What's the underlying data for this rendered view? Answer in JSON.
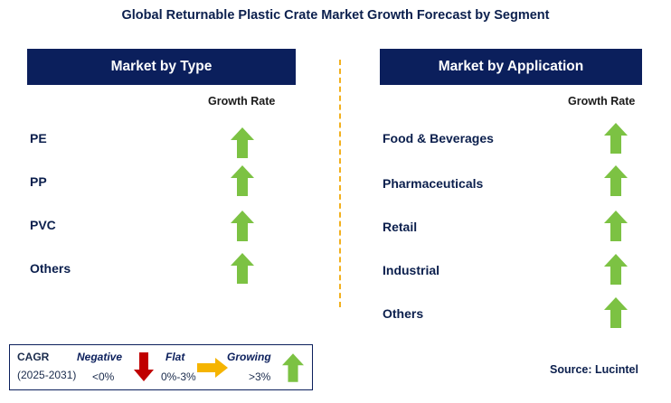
{
  "title": "Global Returnable Plastic Crate Market Growth Forecast by Segment",
  "left_panel": {
    "header": "Market by Type",
    "growth_label": "Growth Rate",
    "rows": [
      {
        "label": "PE",
        "trend": "growing"
      },
      {
        "label": "PP",
        "trend": "growing"
      },
      {
        "label": "PVC",
        "trend": "growing"
      },
      {
        "label": "Others",
        "trend": "growing"
      }
    ]
  },
  "right_panel": {
    "header": "Market by Application",
    "growth_label": "Growth Rate",
    "rows": [
      {
        "label": "Food & Beverages",
        "trend": "growing"
      },
      {
        "label": "Pharmaceuticals",
        "trend": "growing"
      },
      {
        "label": "Retail",
        "trend": "growing"
      },
      {
        "label": "Industrial",
        "trend": "growing"
      },
      {
        "label": "Others",
        "trend": "growing"
      }
    ]
  },
  "legend": {
    "cagr_label": "CAGR",
    "years": "(2025-2031)",
    "negative_label": "Negative",
    "negative_value": "<0%",
    "flat_label": "Flat",
    "flat_value": "0%-3%",
    "growing_label": "Growing",
    "growing_value": ">3%"
  },
  "source": "Source: Lucintel",
  "colors": {
    "header_bg": "#0b1f5c",
    "growing_arrow": "#7cc243",
    "negative_arrow": "#c00000",
    "flat_arrow": "#f5b400",
    "divider": "#f2b01e"
  }
}
